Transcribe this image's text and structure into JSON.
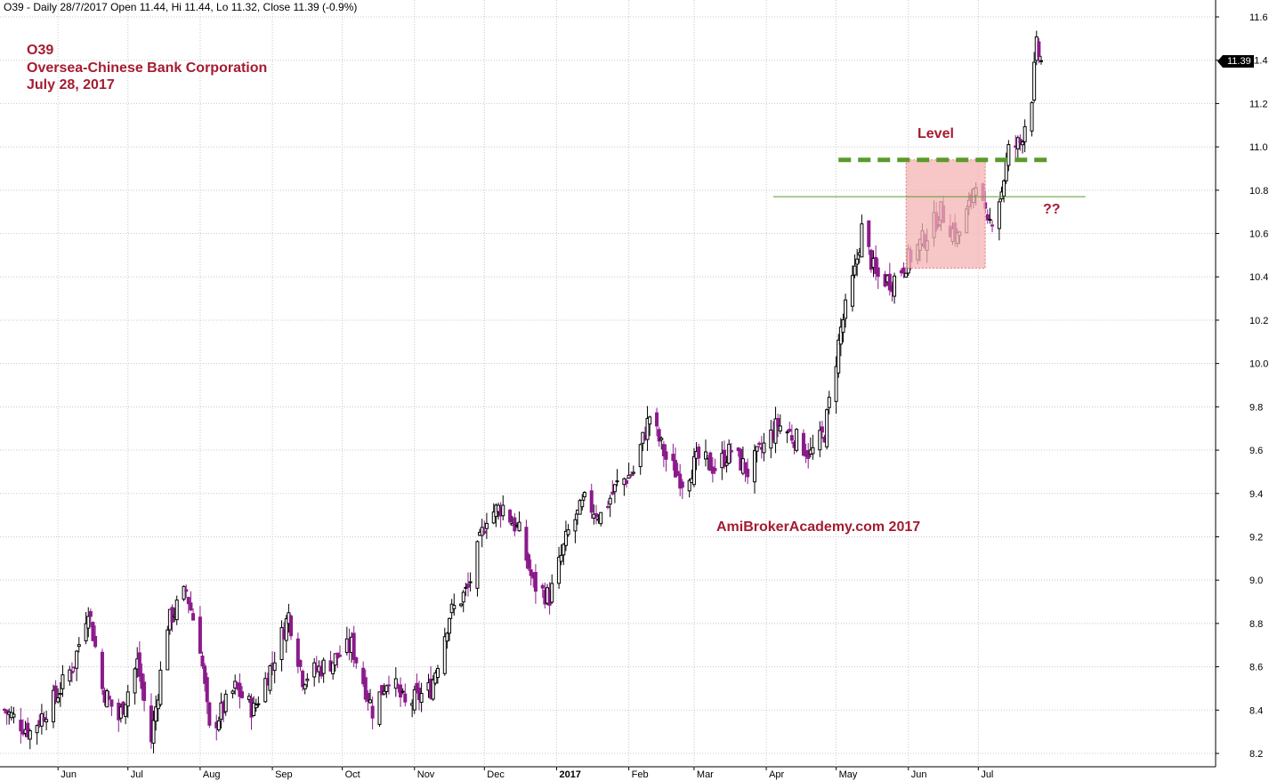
{
  "header": "O39 - Daily 28/7/2017 Open 11.44, Hi 11.44, Lo 11.32, Close 11.39 (-0.9%)",
  "title_lines": [
    "O39",
    "Oversea-Chinese Bank Corporation",
    "July 28, 2017"
  ],
  "watermark": "AmiBrokerAcademy.com  2017",
  "last_price_label": "11.39",
  "colors": {
    "up": "#000000",
    "down": "#8b1a8b",
    "annotation": "#a51c30",
    "level": "#5a9a2a",
    "box": "#f4b3b3",
    "grid": "#c8c8c8"
  },
  "chart_data": {
    "type": "candlestick",
    "x_axis": {
      "ticks": [
        "Jun",
        "Jul",
        "Aug",
        "Sep",
        "Oct",
        "Nov",
        "Dec",
        "2017",
        "Feb",
        "Mar",
        "Apr",
        "May",
        "Jun",
        "Jul"
      ],
      "range": [
        "2016-05-09",
        "2017-07-28"
      ]
    },
    "y_axis": {
      "ticks": [
        8.2,
        8.4,
        8.6,
        8.8,
        9.0,
        9.2,
        9.4,
        9.6,
        9.8,
        10.0,
        10.2,
        10.4,
        10.6,
        10.8,
        11.0,
        11.2,
        11.4,
        11.6
      ],
      "range": [
        8.18,
        11.68
      ],
      "side": "right",
      "grid": true
    },
    "last": {
      "date": "2017-07-28",
      "open": 11.44,
      "high": 11.44,
      "low": 11.32,
      "close": 11.39,
      "change_pct": -0.9
    },
    "close_path": [
      {
        "date": "2016-05-09",
        "close": 8.4
      },
      {
        "date": "2016-05-20",
        "close": 8.3
      },
      {
        "date": "2016-05-31",
        "close": 8.46
      },
      {
        "date": "2016-06-08",
        "close": 8.62
      },
      {
        "date": "2016-06-14",
        "close": 8.88
      },
      {
        "date": "2016-06-20",
        "close": 8.5
      },
      {
        "date": "2016-06-27",
        "close": 8.36
      },
      {
        "date": "2016-07-05",
        "close": 8.62
      },
      {
        "date": "2016-07-11",
        "close": 8.26
      },
      {
        "date": "2016-07-18",
        "close": 8.8
      },
      {
        "date": "2016-07-26",
        "close": 8.95
      },
      {
        "date": "2016-08-01",
        "close": 8.7
      },
      {
        "date": "2016-08-05",
        "close": 8.3
      },
      {
        "date": "2016-08-16",
        "close": 8.5
      },
      {
        "date": "2016-08-24",
        "close": 8.4
      },
      {
        "date": "2016-09-01",
        "close": 8.62
      },
      {
        "date": "2016-09-08",
        "close": 8.84
      },
      {
        "date": "2016-09-14",
        "close": 8.55
      },
      {
        "date": "2016-09-26",
        "close": 8.62
      },
      {
        "date": "2016-10-05",
        "close": 8.7
      },
      {
        "date": "2016-10-14",
        "close": 8.4
      },
      {
        "date": "2016-10-21",
        "close": 8.56
      },
      {
        "date": "2016-10-28",
        "close": 8.42
      },
      {
        "date": "2016-11-08",
        "close": 8.5
      },
      {
        "date": "2016-11-16",
        "close": 8.84
      },
      {
        "date": "2016-11-24",
        "close": 8.96
      },
      {
        "date": "2016-12-02",
        "close": 9.3
      },
      {
        "date": "2016-12-09",
        "close": 9.34
      },
      {
        "date": "2016-12-16",
        "close": 9.22
      },
      {
        "date": "2016-12-22",
        "close": 8.98
      },
      {
        "date": "2016-12-29",
        "close": 8.92
      },
      {
        "date": "2017-01-06",
        "close": 9.22
      },
      {
        "date": "2017-01-13",
        "close": 9.36
      },
      {
        "date": "2017-01-20",
        "close": 9.3
      },
      {
        "date": "2017-01-27",
        "close": 9.44
      },
      {
        "date": "2017-02-03",
        "close": 9.5
      },
      {
        "date": "2017-02-10",
        "close": 9.76
      },
      {
        "date": "2017-02-17",
        "close": 9.56
      },
      {
        "date": "2017-02-24",
        "close": 9.46
      },
      {
        "date": "2017-03-03",
        "close": 9.56
      },
      {
        "date": "2017-03-10",
        "close": 9.52
      },
      {
        "date": "2017-03-17",
        "close": 9.6
      },
      {
        "date": "2017-03-24",
        "close": 9.5
      },
      {
        "date": "2017-03-31",
        "close": 9.62
      },
      {
        "date": "2017-04-06",
        "close": 9.72
      },
      {
        "date": "2017-04-13",
        "close": 9.66
      },
      {
        "date": "2017-04-20",
        "close": 9.58
      },
      {
        "date": "2017-04-26",
        "close": 9.68
      },
      {
        "date": "2017-05-03",
        "close": 10.16
      },
      {
        "date": "2017-05-09",
        "close": 10.42
      },
      {
        "date": "2017-05-12",
        "close": 10.62
      },
      {
        "date": "2017-05-18",
        "close": 10.4
      },
      {
        "date": "2017-05-25",
        "close": 10.38
      },
      {
        "date": "2017-06-01",
        "close": 10.48
      },
      {
        "date": "2017-06-08",
        "close": 10.58
      },
      {
        "date": "2017-06-15",
        "close": 10.7
      },
      {
        "date": "2017-06-22",
        "close": 10.58
      },
      {
        "date": "2017-06-27",
        "close": 10.72
      },
      {
        "date": "2017-06-30",
        "close": 10.86
      },
      {
        "date": "2017-07-05",
        "close": 10.62
      },
      {
        "date": "2017-07-11",
        "close": 10.8
      },
      {
        "date": "2017-07-14",
        "close": 10.98
      },
      {
        "date": "2017-07-19",
        "close": 11.02
      },
      {
        "date": "2017-07-24",
        "close": 11.24
      },
      {
        "date": "2017-07-26",
        "close": 11.46
      },
      {
        "date": "2017-07-28",
        "close": 11.39
      }
    ],
    "annotations": [
      {
        "type": "hline",
        "label": "Level",
        "y": 10.94,
        "x_from": "2017-05-02",
        "x_to": "2017-07-31",
        "style": "dashed-thick-green"
      },
      {
        "type": "hline",
        "y": 10.77,
        "x_from": "2017-04-04",
        "x_to": "2017-08-16",
        "style": "thin-green"
      },
      {
        "type": "box",
        "y_low": 10.44,
        "y_high": 10.94,
        "x_from": "2017-05-31",
        "x_to": "2017-07-04",
        "style": "pink"
      },
      {
        "type": "text",
        "label": "??",
        "y": 10.7,
        "x": "2017-08-03"
      }
    ]
  }
}
